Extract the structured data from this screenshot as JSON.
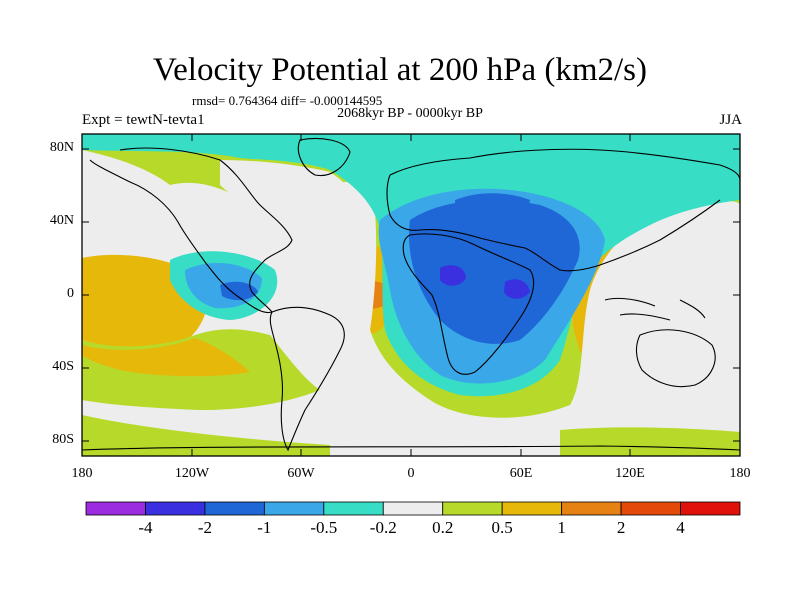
{
  "title": "Velocity Potential at 200 hPa (km2/s)",
  "stats_line": "rmsd= 0.764364 diff= -0.000144595",
  "period": "2068kyr BP - 0000kyr BP",
  "experiment": "Expt = tewtN-tevta1",
  "season": "JJA",
  "lat_ticks": [
    "80N",
    "40N",
    "0",
    "40S",
    "80S"
  ],
  "lon_ticks": [
    "180",
    "120W",
    "60W",
    "0",
    "60E",
    "120E",
    "180"
  ],
  "colorbar": {
    "labels": [
      "-4",
      "-2",
      "-1",
      "-0.5",
      "-0.2",
      "0.2",
      "0.5",
      "1",
      "2",
      "4"
    ],
    "colors": [
      "#9b2ce0",
      "#3a30e0",
      "#1f66d6",
      "#3aa8e8",
      "#37ddc4",
      "#ededed",
      "#b7da2a",
      "#e5b80a",
      "#e58213",
      "#e34a0a",
      "#e0100b"
    ]
  }
}
